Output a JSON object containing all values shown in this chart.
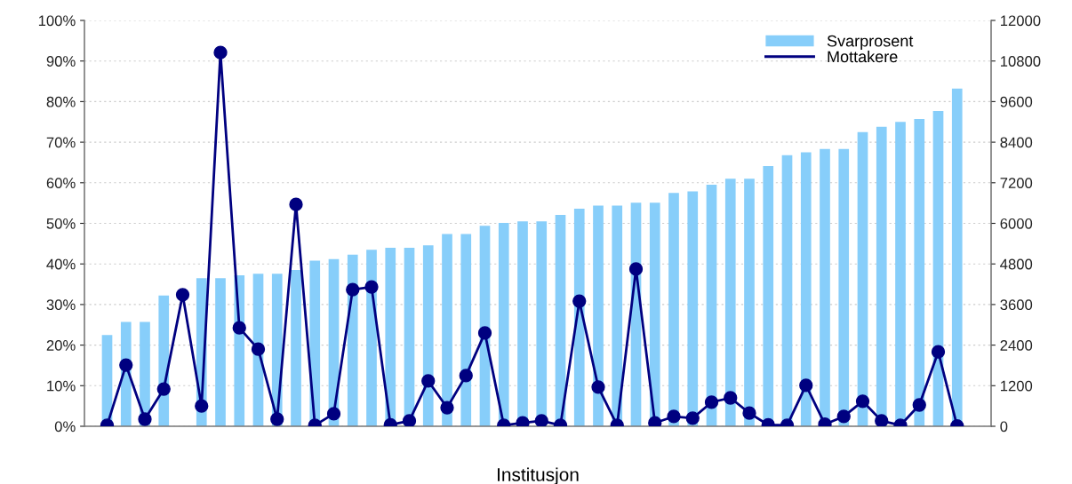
{
  "chart_data": {
    "type": "bar",
    "xlabel": "Institusjon",
    "categories": [
      null,
      null,
      null,
      null,
      null,
      null,
      null,
      null,
      null,
      null,
      null,
      null,
      null,
      null,
      null,
      null,
      null,
      null,
      null,
      null,
      null,
      null,
      null,
      null,
      null,
      null,
      null,
      null,
      null,
      null,
      null,
      null,
      null,
      null,
      null,
      null,
      null,
      null,
      null,
      null,
      null,
      null,
      null,
      null,
      null,
      null
    ],
    "series": [
      {
        "name": "Svarprosent",
        "color": "#87cefa",
        "values": [
          22.5,
          25.7,
          25.7,
          32.2,
          null,
          36.5,
          36.5,
          37.2,
          37.6,
          37.6,
          38.5,
          40.8,
          41.2,
          42.3,
          43.5,
          44,
          44,
          44.6,
          47.4,
          47.4,
          49.4,
          50.1,
          50.5,
          50.5,
          52.1,
          53.6,
          54.4,
          54.4,
          55.1,
          55.1,
          57.5,
          57.9,
          59.5,
          61,
          61,
          64.1,
          66.8,
          67.5,
          68.3,
          68.3,
          72.5,
          73.8,
          75,
          75.7,
          77.7,
          83.2
        ]
      },
      {
        "name": "Mottakere",
        "type": "line",
        "axis": "y2",
        "color": "#000080",
        "marker": "circle",
        "values": [
          30,
          1810,
          210,
          1100,
          3890,
          600,
          11050,
          2910,
          2280,
          210,
          6560,
          30,
          370,
          4040,
          4120,
          40,
          160,
          1340,
          550,
          1500,
          2760,
          30,
          100,
          160,
          30,
          3700,
          1160,
          30,
          4650,
          100,
          290,
          240,
          710,
          840,
          390,
          40,
          30,
          1210,
          60,
          290,
          740,
          160,
          30,
          630,
          2200,
          10
        ]
      }
    ],
    "ylim": [
      0,
      100
    ],
    "yticks": [
      {
        "value": 0,
        "label": "0%"
      },
      {
        "value": 10,
        "label": "10%"
      },
      {
        "value": 20,
        "label": "20%"
      },
      {
        "value": 30,
        "label": "30%"
      },
      {
        "value": 40,
        "label": "40%"
      },
      {
        "value": 50,
        "label": "50%"
      },
      {
        "value": 60,
        "label": "60%"
      },
      {
        "value": 70,
        "label": "70%"
      },
      {
        "value": 80,
        "label": "80%"
      },
      {
        "value": 90,
        "label": "90%"
      },
      {
        "value": 100,
        "label": "100%"
      }
    ],
    "y2lim": [
      0,
      12000
    ],
    "y2ticks": [
      0,
      1200,
      2400,
      3600,
      4800,
      6000,
      7200,
      8400,
      9600,
      10800,
      12000
    ],
    "grid": "y",
    "legend": "top right"
  }
}
